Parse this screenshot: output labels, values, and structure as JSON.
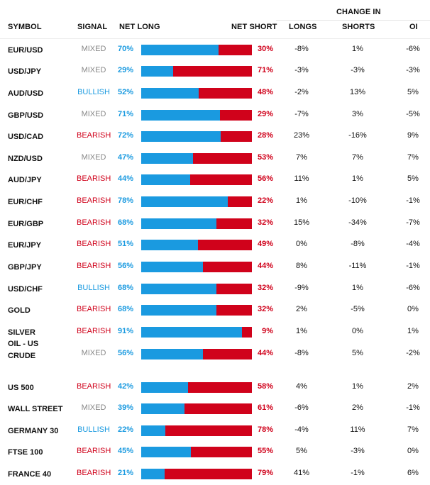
{
  "header": {
    "symbol": "SYMBOL",
    "signal": "SIGNAL",
    "net_long": "NET LONG",
    "net_short": "NET SHORT",
    "change_in": "CHANGE IN",
    "longs": "LONGS",
    "shorts": "SHORTS",
    "oi": "OI"
  },
  "colors": {
    "long_blue": "#1a9ae0",
    "short_red": "#d0021b",
    "mixed_gray": "#888888"
  },
  "rows": [
    {
      "symbol": "EUR/USD",
      "signal": "MIXED",
      "net_long": "70%",
      "net_short": "30%",
      "long_fraction": 0.7,
      "longs": "-8%",
      "shorts": "1%",
      "oi": "-6%"
    },
    {
      "symbol": "USD/JPY",
      "signal": "MIXED",
      "net_long": "29%",
      "net_short": "71%",
      "long_fraction": 0.29,
      "longs": "-3%",
      "shorts": "-3%",
      "oi": "-3%"
    },
    {
      "symbol": "AUD/USD",
      "signal": "BULLISH",
      "net_long": "52%",
      "net_short": "48%",
      "long_fraction": 0.52,
      "longs": "-2%",
      "shorts": "13%",
      "oi": "5%"
    },
    {
      "symbol": "GBP/USD",
      "signal": "MIXED",
      "net_long": "71%",
      "net_short": "29%",
      "long_fraction": 0.71,
      "longs": "-7%",
      "shorts": "3%",
      "oi": "-5%"
    },
    {
      "symbol": "USD/CAD",
      "signal": "BEARISH",
      "net_long": "72%",
      "net_short": "28%",
      "long_fraction": 0.72,
      "longs": "23%",
      "shorts": "-16%",
      "oi": "9%"
    },
    {
      "symbol": "NZD/USD",
      "signal": "MIXED",
      "net_long": "47%",
      "net_short": "53%",
      "long_fraction": 0.47,
      "longs": "7%",
      "shorts": "7%",
      "oi": "7%"
    },
    {
      "symbol": "AUD/JPY",
      "signal": "BEARISH",
      "net_long": "44%",
      "net_short": "56%",
      "long_fraction": 0.44,
      "longs": "11%",
      "shorts": "1%",
      "oi": "5%"
    },
    {
      "symbol": "EUR/CHF",
      "signal": "BEARISH",
      "net_long": "78%",
      "net_short": "22%",
      "long_fraction": 0.78,
      "longs": "1%",
      "shorts": "-10%",
      "oi": "-1%"
    },
    {
      "symbol": "EUR/GBP",
      "signal": "BEARISH",
      "net_long": "68%",
      "net_short": "32%",
      "long_fraction": 0.68,
      "longs": "15%",
      "shorts": "-34%",
      "oi": "-7%"
    },
    {
      "symbol": "EUR/JPY",
      "signal": "BEARISH",
      "net_long": "51%",
      "net_short": "49%",
      "long_fraction": 0.51,
      "longs": "0%",
      "shorts": "-8%",
      "oi": "-4%"
    },
    {
      "symbol": "GBP/JPY",
      "signal": "BEARISH",
      "net_long": "56%",
      "net_short": "44%",
      "long_fraction": 0.56,
      "longs": "8%",
      "shorts": "-11%",
      "oi": "-1%"
    },
    {
      "symbol": "USD/CHF",
      "signal": "BULLISH",
      "net_long": "68%",
      "net_short": "32%",
      "long_fraction": 0.68,
      "longs": "-9%",
      "shorts": "1%",
      "oi": "-6%"
    },
    {
      "symbol": "GOLD",
      "signal": "BEARISH",
      "net_long": "68%",
      "net_short": "32%",
      "long_fraction": 0.68,
      "longs": "2%",
      "shorts": "-5%",
      "oi": "0%"
    },
    {
      "symbol": "SILVER",
      "signal": "BEARISH",
      "net_long": "91%",
      "net_short": "9%",
      "long_fraction": 0.91,
      "longs": "1%",
      "shorts": "0%",
      "oi": "1%"
    },
    {
      "symbol": "OIL - US CRUDE",
      "signal": "MIXED",
      "net_long": "56%",
      "net_short": "44%",
      "long_fraction": 0.56,
      "longs": "-8%",
      "shorts": "5%",
      "oi": "-2%"
    },
    {
      "symbol": "US 500",
      "signal": "BEARISH",
      "net_long": "42%",
      "net_short": "58%",
      "long_fraction": 0.42,
      "longs": "4%",
      "shorts": "1%",
      "oi": "2%"
    },
    {
      "symbol": "WALL STREET",
      "signal": "MIXED",
      "net_long": "39%",
      "net_short": "61%",
      "long_fraction": 0.39,
      "longs": "-6%",
      "shorts": "2%",
      "oi": "-1%"
    },
    {
      "symbol": "GERMANY 30",
      "signal": "BULLISH",
      "net_long": "22%",
      "net_short": "78%",
      "long_fraction": 0.22,
      "longs": "-4%",
      "shorts": "11%",
      "oi": "7%"
    },
    {
      "symbol": "FTSE 100",
      "signal": "BEARISH",
      "net_long": "45%",
      "net_short": "55%",
      "long_fraction": 0.45,
      "longs": "5%",
      "shorts": "-3%",
      "oi": "0%"
    },
    {
      "symbol": "FRANCE 40",
      "signal": "BEARISH",
      "net_long": "21%",
      "net_short": "79%",
      "long_fraction": 0.21,
      "longs": "41%",
      "shorts": "-1%",
      "oi": "6%"
    }
  ]
}
